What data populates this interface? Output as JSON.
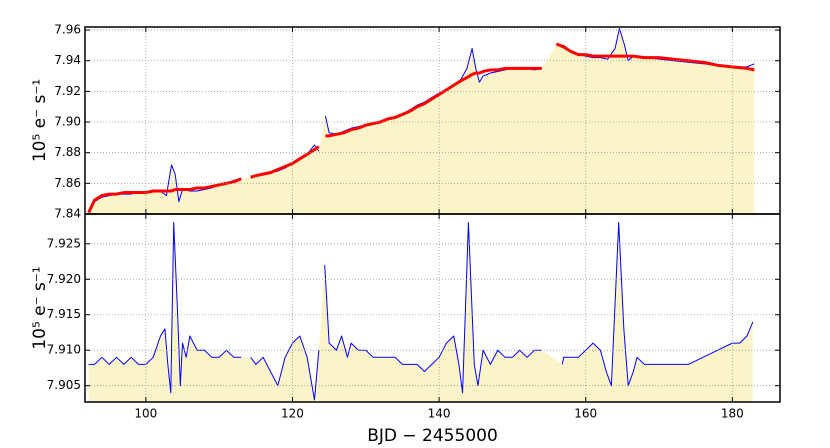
{
  "chart_data": [
    {
      "type": "line",
      "ylabel": "10⁵ e⁻ s⁻¹",
      "grid": true,
      "xlim": [
        91.7,
        186.5
      ],
      "xticks": [
        100,
        120,
        140,
        160,
        180
      ],
      "ylim": [
        7.84,
        7.962
      ],
      "yticks": [
        7.84,
        7.86,
        7.88,
        {
          "value": 7.9,
          "label": "7.90"
        },
        7.92,
        7.94,
        7.96
      ],
      "fill_color": "#fbf4c8",
      "x": [
        92.2,
        93,
        94,
        95,
        96,
        97,
        98,
        99,
        100,
        101,
        102,
        102.8,
        103.5,
        104,
        104.5,
        105,
        106,
        107,
        108,
        109,
        110,
        111,
        112,
        113,
        113.5,
        114.3,
        115,
        116,
        117,
        118,
        119,
        120,
        121,
        122,
        123,
        123.6,
        124,
        124.5,
        125,
        126,
        127,
        128,
        129,
        130,
        131,
        132,
        133,
        134,
        135,
        136,
        137,
        138,
        139,
        140,
        141,
        142,
        143,
        143.8,
        144.5,
        145,
        145.5,
        146,
        147,
        148,
        149,
        150,
        151,
        152,
        153,
        154,
        155,
        156,
        157,
        158,
        159,
        160,
        161,
        162,
        163,
        164,
        164.6,
        165.3,
        165.8,
        166.5,
        168,
        170,
        172,
        174,
        176,
        178,
        180,
        182,
        183
      ],
      "series": [
        {
          "color": "#0000ff",
          "fill": true,
          "values": [
            7.84,
            7.848,
            7.851,
            7.852,
            7.853,
            7.853,
            7.853,
            7.854,
            7.854,
            7.855,
            7.855,
            7.852,
            7.872,
            7.866,
            7.848,
            7.856,
            7.855,
            7.855,
            7.856,
            7.857,
            7.859,
            7.86,
            7.862,
            7.863,
            null,
            7.864,
            7.865,
            7.866,
            7.867,
            7.868,
            7.87,
            7.873,
            7.876,
            7.879,
            7.885,
            7.881,
            null,
            7.904,
            7.893,
            7.892,
            7.894,
            7.896,
            7.897,
            7.898,
            7.899,
            7.9,
            7.902,
            7.903,
            7.905,
            7.908,
            7.911,
            7.913,
            7.916,
            7.919,
            7.921,
            7.924,
            7.928,
            7.935,
            7.948,
            7.935,
            7.926,
            7.93,
            7.932,
            7.933,
            7.934,
            7.935,
            7.935,
            7.935,
            7.934,
            7.935,
            null,
            7.95,
            7.95,
            7.946,
            7.944,
            7.943,
            7.942,
            7.942,
            7.941,
            7.948,
            7.961,
            7.95,
            7.94,
            7.943,
            7.942,
            7.941,
            7.94,
            7.939,
            7.938,
            7.937,
            7.936,
            7.936,
            7.938
          ]
        },
        {
          "color": "#ff0000",
          "width": 3,
          "values": [
            7.841,
            7.849,
            7.852,
            7.853,
            7.853,
            7.854,
            7.854,
            7.854,
            7.854,
            7.855,
            7.855,
            7.855,
            7.855,
            7.856,
            7.856,
            7.856,
            7.856,
            7.857,
            7.857,
            7.858,
            7.859,
            7.86,
            7.861,
            7.863,
            null,
            7.864,
            7.865,
            7.866,
            7.867,
            7.869,
            7.871,
            7.873,
            7.876,
            7.879,
            7.882,
            7.884,
            null,
            7.891,
            7.891,
            7.892,
            7.893,
            7.895,
            7.896,
            7.898,
            7.899,
            7.9,
            7.902,
            7.903,
            7.905,
            7.907,
            7.91,
            7.912,
            7.915,
            7.918,
            7.921,
            7.924,
            7.927,
            7.929,
            7.931,
            7.932,
            7.932,
            7.933,
            7.934,
            7.934,
            7.935,
            7.935,
            7.935,
            7.935,
            7.935,
            7.935,
            null,
            7.951,
            7.949,
            7.946,
            7.944,
            7.944,
            7.943,
            7.943,
            7.943,
            7.943,
            7.943,
            7.943,
            7.943,
            7.943,
            7.942,
            7.942,
            7.941,
            7.94,
            7.939,
            7.937,
            7.936,
            7.935,
            7.934
          ]
        }
      ]
    },
    {
      "type": "line",
      "ylabel": "10⁵ e⁻ s⁻¹",
      "xlabel": "BJD − 2455000",
      "grid": true,
      "xlim": [
        91.7,
        186.5
      ],
      "xticks": [
        100,
        120,
        140,
        160,
        180
      ],
      "ylim": [
        7.9027,
        7.9292
      ],
      "yticks": [
        7.905,
        {
          "value": 7.91,
          "label": "7.910"
        },
        7.915,
        {
          "value": 7.92,
          "label": "7.920"
        },
        7.925
      ],
      "fill_color": "#fbf4c8",
      "x": [
        92.2,
        93,
        94,
        95,
        96,
        97,
        98,
        99,
        100,
        101,
        102,
        102.6,
        103,
        103.4,
        103.8,
        104.3,
        104.7,
        105,
        105.5,
        106,
        107,
        108,
        109,
        110,
        111,
        112,
        113,
        113.6,
        114.3,
        115,
        116,
        117,
        118,
        119,
        120,
        121,
        122,
        123,
        123.6,
        124,
        124.4,
        125,
        126,
        126.7,
        127.5,
        128,
        129,
        130,
        131,
        132,
        133,
        134,
        135,
        136,
        137,
        138,
        139,
        140,
        141,
        142,
        142.7,
        143.2,
        144,
        144.8,
        145.3,
        146,
        147,
        148,
        149,
        150,
        151,
        152,
        153,
        154,
        155,
        156.8,
        157,
        158,
        159,
        160,
        161,
        162,
        162.8,
        163.5,
        164.5,
        165.2,
        165.8,
        166.5,
        167,
        168,
        169,
        170,
        172,
        174,
        176,
        178,
        180,
        181,
        182,
        182.8
      ],
      "series": [
        {
          "color": "#0000ff",
          "fill": true,
          "values": [
            7.908,
            7.908,
            7.909,
            7.908,
            7.909,
            7.908,
            7.909,
            7.908,
            7.908,
            7.909,
            7.912,
            7.913,
            7.908,
            7.904,
            7.928,
            7.916,
            7.905,
            7.911,
            7.909,
            7.912,
            7.91,
            7.91,
            7.909,
            7.909,
            7.91,
            7.909,
            7.909,
            null,
            7.909,
            7.908,
            7.909,
            7.907,
            7.905,
            7.909,
            7.911,
            7.912,
            7.909,
            7.903,
            7.91,
            null,
            7.922,
            7.911,
            7.91,
            7.912,
            7.909,
            7.911,
            7.91,
            7.91,
            7.909,
            7.909,
            7.909,
            7.909,
            7.908,
            7.908,
            7.908,
            7.907,
            7.908,
            7.909,
            7.911,
            7.912,
            7.908,
            7.904,
            7.928,
            7.908,
            7.905,
            7.91,
            7.908,
            7.91,
            7.909,
            7.909,
            7.91,
            7.909,
            7.91,
            7.91,
            null,
            7.908,
            7.909,
            7.909,
            7.909,
            7.91,
            7.911,
            7.91,
            7.907,
            7.905,
            7.928,
            7.913,
            7.905,
            7.907,
            7.909,
            7.908,
            7.908,
            7.908,
            7.908,
            7.908,
            7.909,
            7.91,
            7.911,
            7.911,
            7.912,
            7.914
          ]
        }
      ]
    }
  ]
}
